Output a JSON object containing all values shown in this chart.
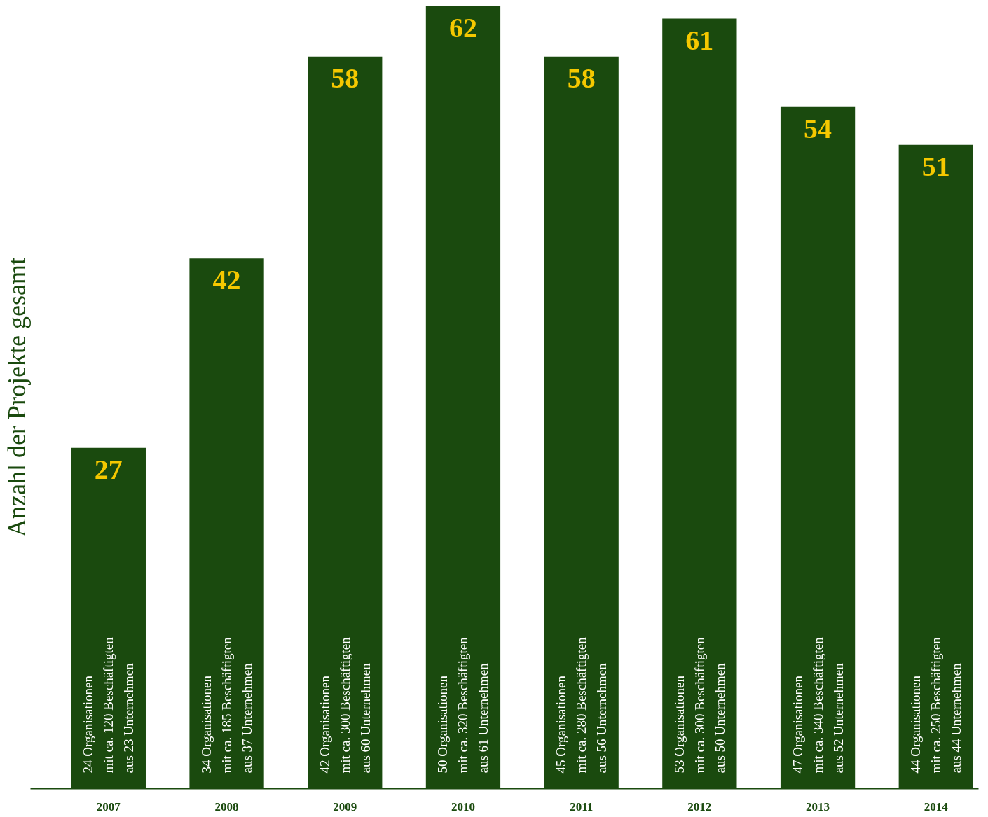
{
  "chart_data": {
    "type": "bar",
    "ylabel": "Anzahl der Projekte gesamt",
    "categories": [
      "2007",
      "2008",
      "2009",
      "2010",
      "2011",
      "2012",
      "2013",
      "2014"
    ],
    "values": [
      27,
      42,
      58,
      62,
      58,
      61,
      54,
      51
    ],
    "color": "#1a4a0e",
    "ylim": [
      0,
      62
    ],
    "tick_labels": "x",
    "data_labels": true,
    "annotations": [
      "24 Organisationen\nmit ca. 120 Beschäftigten\naus 23 Unternehmen",
      "34 Organisationen\nmit ca. 185 Beschäftigten\naus 37 Unternehmen",
      "42 Organisationen\nmit ca. 300 Beschäftigten\naus 60 Unternehmen",
      "50 Organisationen\nmit ca. 320 Beschäftigten\naus 61 Unternehmen",
      "45 Organisationen\nmit ca. 280 Beschäftigten\naus 56 Unternehmen",
      "53 Organisationen\nmit ca. 300 Beschäftigten\naus 50 Unternehmen",
      "47 Organisationen\nmit ca. 340 Beschäftigten\naus 52 Unternehmen",
      "44 Organisationen\nmit ca. 250 Beschäftigten\naus 44 Unternehmen"
    ]
  }
}
